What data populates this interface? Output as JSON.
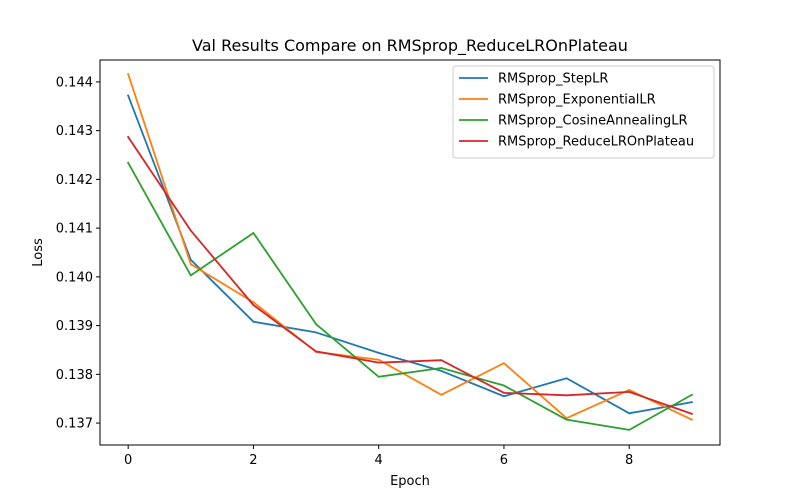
{
  "chart_data": {
    "type": "line",
    "title": "Val Results Compare on RMSprop_ReduceLROnPlateau",
    "xlabel": "Epoch",
    "ylabel": "Loss",
    "xlim": [
      -0.45,
      9.45
    ],
    "ylim": [
      0.13655,
      0.14445
    ],
    "x": [
      0,
      1,
      2,
      3,
      4,
      5,
      6,
      7,
      8,
      9
    ],
    "xticks": [
      0,
      2,
      4,
      6,
      8
    ],
    "xtick_labels": [
      "0",
      "2",
      "4",
      "6",
      "8"
    ],
    "yticks": [
      0.137,
      0.138,
      0.139,
      0.14,
      0.141,
      0.142,
      0.143,
      0.144
    ],
    "ytick_labels": [
      "0.137",
      "0.138",
      "0.139",
      "0.140",
      "0.141",
      "0.142",
      "0.143",
      "0.144"
    ],
    "grid": false,
    "legend_position": "top-right",
    "series": [
      {
        "name": "RMSprop_StepLR",
        "color": "#1f77b4",
        "values": [
          0.14372,
          0.14035,
          0.13908,
          0.13886,
          0.13844,
          0.13807,
          0.13755,
          0.13792,
          0.1372,
          0.13743
        ]
      },
      {
        "name": "RMSprop_ExponentialLR",
        "color": "#ff7f0e",
        "values": [
          0.14416,
          0.14026,
          0.13948,
          0.13846,
          0.1383,
          0.13758,
          0.13823,
          0.1371,
          0.13768,
          0.13707
        ]
      },
      {
        "name": "RMSprop_CosineAnnealingLR",
        "color": "#2ca02c",
        "values": [
          0.14234,
          0.14003,
          0.1409,
          0.13903,
          0.13795,
          0.13813,
          0.13777,
          0.13707,
          0.13686,
          0.13758
        ]
      },
      {
        "name": "RMSprop_ReduceLROnPlateau",
        "color": "#d62728",
        "values": [
          0.14287,
          0.14095,
          0.13942,
          0.13847,
          0.13824,
          0.13829,
          0.13762,
          0.13757,
          0.13764,
          0.13719
        ]
      }
    ]
  }
}
